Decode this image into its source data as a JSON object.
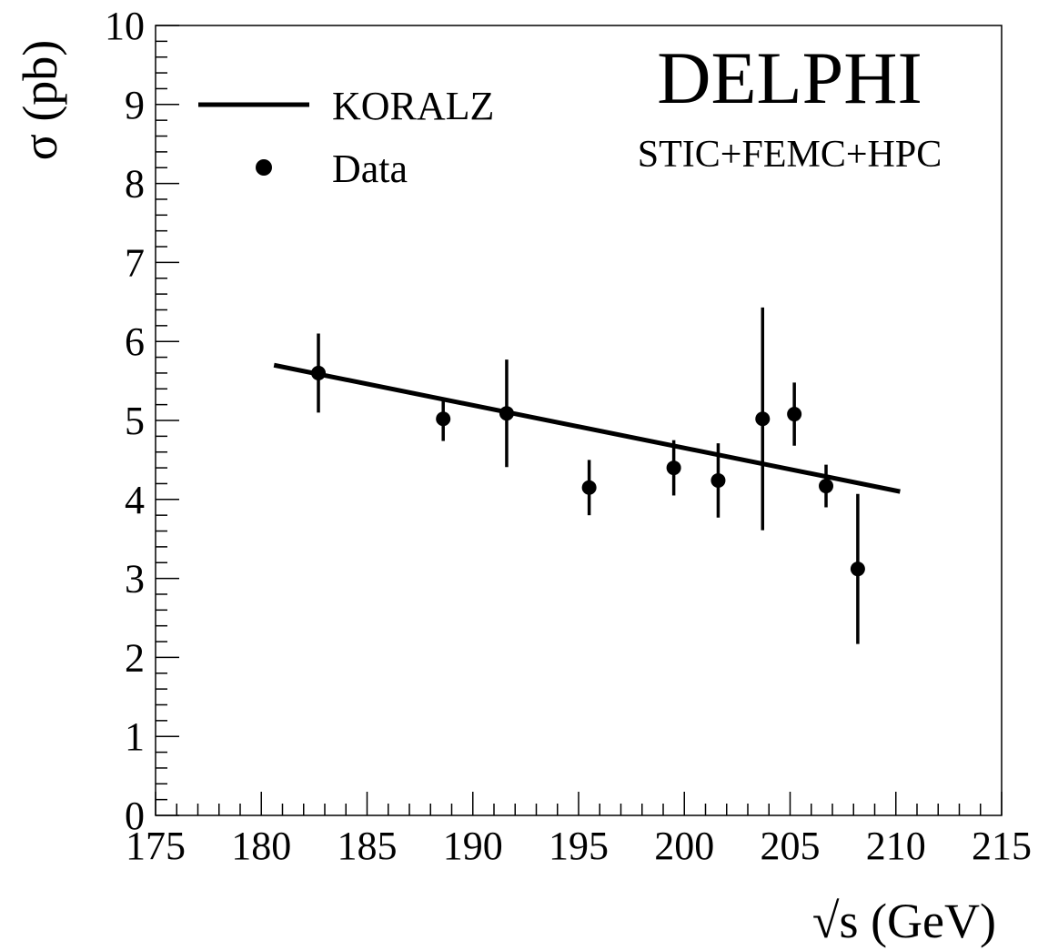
{
  "chart_data": {
    "type": "scatter",
    "xlabel": "√s (GeV)",
    "ylabel": "σ (pb)",
    "xlim": [
      175,
      215
    ],
    "ylim": [
      0,
      10
    ],
    "x_ticks": [
      175,
      180,
      185,
      190,
      195,
      200,
      205,
      210,
      215
    ],
    "y_ticks": [
      0,
      1,
      2,
      3,
      4,
      5,
      6,
      7,
      8,
      9,
      10
    ],
    "grid": false,
    "legend_position": "top-left",
    "annotations": {
      "experiment": "DELPHI",
      "detectors": "STIC+FEMC+HPC"
    },
    "series": [
      {
        "name": "KORALZ",
        "kind": "line",
        "x": [
          180.6,
          210.2
        ],
        "y": [
          5.7,
          4.1
        ]
      },
      {
        "name": "Data",
        "kind": "points-with-errors",
        "x": [
          182.7,
          188.6,
          191.6,
          195.5,
          199.5,
          201.6,
          203.7,
          205.2,
          206.7,
          208.2
        ],
        "y": [
          5.6,
          5.02,
          5.09,
          4.15,
          4.4,
          4.24,
          5.02,
          5.08,
          4.17,
          3.12
        ],
        "err_low": [
          0.5,
          0.28,
          0.68,
          0.35,
          0.35,
          0.47,
          1.41,
          0.4,
          0.27,
          0.95
        ],
        "err_high": [
          0.5,
          0.24,
          0.68,
          0.35,
          0.35,
          0.47,
          1.41,
          0.4,
          0.27,
          0.95
        ]
      }
    ]
  }
}
